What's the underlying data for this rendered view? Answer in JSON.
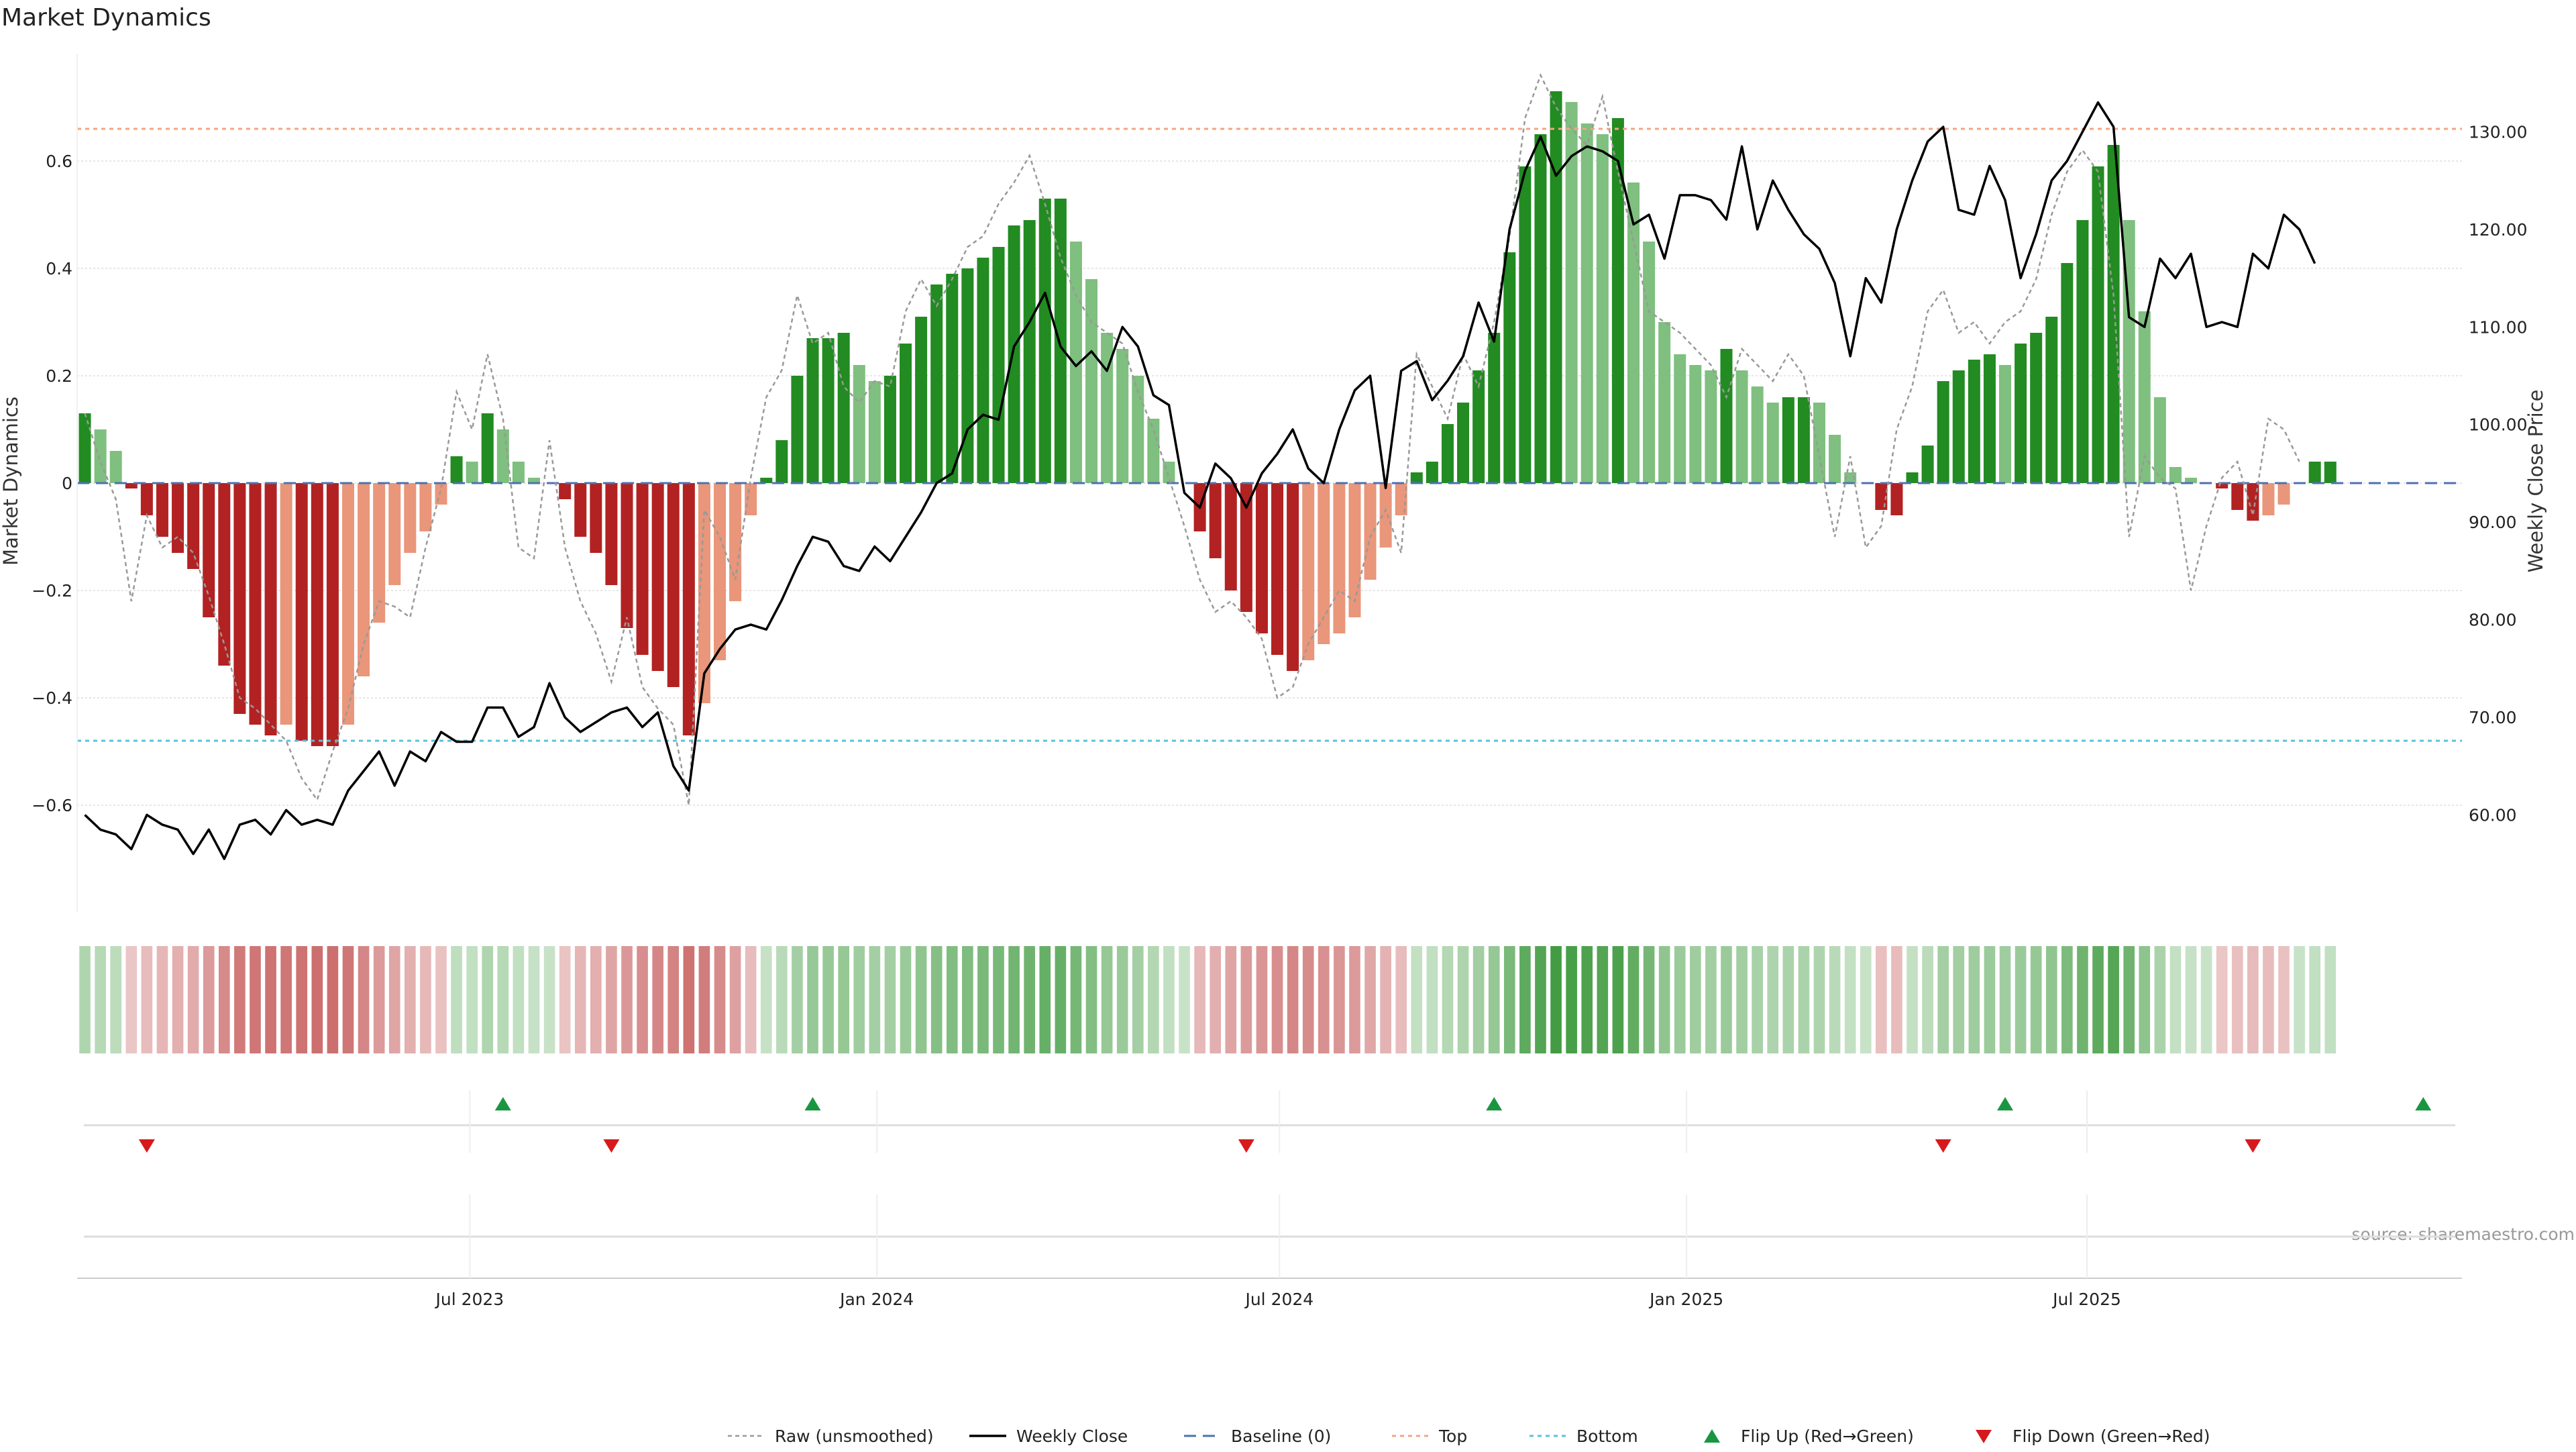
{
  "chart_data": {
    "type": "bar",
    "title": "Market Dynamics",
    "ylabel_left": "Market Dynamics",
    "ylabel_right": "Weekly Close Price",
    "source": "source: sharemaestro.com",
    "left_axis": {
      "ylim": [
        -0.8,
        0.8
      ],
      "ticks": [
        -0.6,
        -0.4,
        -0.2,
        0,
        0.2,
        0.4,
        0.6
      ],
      "tick_labels": [
        "−0.6",
        "−0.4",
        "−0.2",
        "0",
        "0.2",
        "0.4",
        "0.6"
      ]
    },
    "right_axis": {
      "ylim": [
        50,
        138
      ],
      "ticks": [
        60,
        70,
        80,
        90,
        100,
        110,
        120,
        130
      ],
      "tick_labels": [
        "60.00",
        "70.00",
        "80.00",
        "90.00",
        "100.00",
        "110.00",
        "120.00",
        "130.00"
      ]
    },
    "x_axis": {
      "type": "date",
      "range": [
        "2023-01-08",
        "2025-12-14"
      ],
      "ticks": [
        "2023-07-01",
        "2024-01-01",
        "2024-07-01",
        "2025-01-01",
        "2025-07-01"
      ],
      "tick_labels": [
        "Jul 2023",
        "Jan 2024",
        "Jul 2024",
        "Jan 2025",
        "Jul 2025"
      ]
    },
    "start_date": "2023-01-08",
    "week_step_days": 7,
    "grid": true,
    "top_line": 0.66,
    "bottom_line": -0.48,
    "colors": {
      "green_strong": "#228b22",
      "green_light": "#7fbf7f",
      "red_strong": "#b22222",
      "red_light": "#e9967a",
      "raw_line": "#999999",
      "close_line": "#000000",
      "baseline": "#4c72b0",
      "top": "#f4a582",
      "bottom": "#5bc0de",
      "flip_up": "#1a9641",
      "flip_down": "#d7191c"
    },
    "series": [
      {
        "name": "Market Dynamics",
        "values": [
          0.13,
          0.1,
          0.06,
          -0.01,
          -0.06,
          -0.1,
          -0.13,
          -0.16,
          -0.25,
          -0.34,
          -0.43,
          -0.45,
          -0.47,
          -0.45,
          -0.48,
          -0.49,
          -0.49,
          -0.45,
          -0.36,
          -0.26,
          -0.19,
          -0.13,
          -0.09,
          -0.04,
          0.05,
          0.04,
          0.13,
          0.1,
          0.04,
          0.01,
          0,
          -0.03,
          -0.1,
          -0.13,
          -0.19,
          -0.27,
          -0.32,
          -0.35,
          -0.38,
          -0.47,
          -0.41,
          -0.33,
          -0.22,
          -0.06,
          0.01,
          0.08,
          0.2,
          0.27,
          0.27,
          0.28,
          0.22,
          0.19,
          0.2,
          0.26,
          0.31,
          0.37,
          0.39,
          0.4,
          0.42,
          0.44,
          0.48,
          0.49,
          0.53,
          0.53,
          0.45,
          0.38,
          0.28,
          0.25,
          0.2,
          0.12,
          0.04,
          0,
          -0.09,
          -0.14,
          -0.2,
          -0.24,
          -0.28,
          -0.32,
          -0.35,
          -0.33,
          -0.3,
          -0.28,
          -0.25,
          -0.18,
          -0.12,
          -0.06,
          0.02,
          0.04,
          0.11,
          0.15,
          0.21,
          0.28,
          0.43,
          0.59,
          0.65,
          0.73,
          0.71,
          0.67,
          0.65,
          0.68,
          0.56,
          0.45,
          0.3,
          0.24,
          0.22,
          0.21,
          0.25,
          0.21,
          0.18,
          0.15,
          0.16,
          0.16,
          0.15,
          0.09,
          0.02,
          0,
          -0.05,
          -0.06,
          0.02,
          0.07,
          0.19,
          0.21,
          0.23,
          0.24,
          0.22,
          0.26,
          0.28,
          0.31,
          0.41,
          0.49,
          0.59,
          0.63,
          0.49,
          0.32,
          0.16,
          0.03,
          0.01,
          0,
          -0.01,
          -0.05,
          -0.07,
          -0.06,
          -0.04,
          0,
          0.04,
          0.04
        ]
      },
      {
        "name": "Raw (unsmoothed)",
        "values": [
          0.13,
          0.04,
          -0.03,
          -0.22,
          -0.06,
          -0.12,
          -0.1,
          -0.13,
          -0.21,
          -0.3,
          -0.4,
          -0.42,
          -0.45,
          -0.48,
          -0.55,
          -0.59,
          -0.5,
          -0.42,
          -0.3,
          -0.22,
          -0.23,
          -0.25,
          -0.12,
          -0.01,
          0.17,
          0.1,
          0.24,
          0.12,
          -0.12,
          -0.14,
          0.08,
          -0.12,
          -0.22,
          -0.28,
          -0.37,
          -0.25,
          -0.38,
          -0.42,
          -0.45,
          -0.6,
          -0.05,
          -0.1,
          -0.18,
          0.01,
          0.16,
          0.21,
          0.35,
          0.26,
          0.28,
          0.18,
          0.15,
          0.19,
          0.18,
          0.32,
          0.38,
          0.33,
          0.38,
          0.44,
          0.46,
          0.52,
          0.56,
          0.61,
          0.52,
          0.42,
          0.35,
          0.3,
          0.28,
          0.26,
          0.17,
          0.1,
          0.01,
          -0.08,
          -0.18,
          -0.24,
          -0.22,
          -0.25,
          -0.29,
          -0.4,
          -0.38,
          -0.3,
          -0.25,
          -0.2,
          -0.22,
          -0.1,
          -0.05,
          -0.13,
          0.24,
          0.18,
          0.12,
          0.24,
          0.18,
          0.3,
          0.46,
          0.68,
          0.76,
          0.7,
          0.66,
          0.63,
          0.72,
          0.58,
          0.45,
          0.32,
          0.3,
          0.28,
          0.25,
          0.22,
          0.16,
          0.25,
          0.22,
          0.19,
          0.24,
          0.2,
          0.05,
          -0.1,
          0.05,
          -0.12,
          -0.08,
          0.1,
          0.18,
          0.32,
          0.36,
          0.28,
          0.3,
          0.26,
          0.3,
          0.32,
          0.38,
          0.5,
          0.58,
          0.62,
          0.58,
          0.35,
          -0.1,
          0.05,
          0.01,
          -0.01,
          -0.2,
          -0.08,
          0.01,
          0.04,
          -0.06,
          0.12,
          0.1,
          0.04
        ]
      },
      {
        "name": "Weekly Close",
        "values": [
          60.0,
          58.5,
          58.0,
          56.5,
          60.0,
          59.0,
          58.5,
          56.0,
          58.5,
          55.5,
          59.0,
          59.5,
          58.0,
          60.5,
          59.0,
          59.5,
          59.0,
          62.5,
          64.5,
          66.5,
          63.0,
          66.5,
          65.5,
          68.5,
          67.5,
          67.5,
          71.0,
          71.0,
          68.0,
          69.0,
          73.5,
          70.0,
          68.5,
          69.5,
          70.5,
          71.0,
          69.0,
          70.5,
          65.0,
          62.5,
          74.5,
          77.0,
          79.0,
          79.5,
          79.0,
          82.0,
          85.5,
          88.5,
          88.0,
          85.5,
          85.0,
          87.5,
          86.0,
          88.5,
          91.0,
          94.0,
          95.0,
          99.5,
          101.0,
          100.5,
          108.0,
          110.5,
          113.5,
          108.0,
          106.0,
          107.5,
          105.5,
          110.0,
          108.0,
          103.0,
          102.0,
          93.0,
          91.5,
          96.0,
          94.5,
          91.5,
          95.0,
          97.0,
          99.5,
          95.5,
          94.0,
          99.5,
          103.5,
          105.0,
          93.5,
          105.5,
          106.5,
          102.5,
          104.5,
          107.0,
          112.5,
          108.5,
          120.0,
          126.0,
          129.5,
          125.5,
          127.5,
          128.5,
          128.0,
          127.0,
          120.5,
          121.5,
          117.0,
          123.5,
          123.5,
          123.0,
          121.0,
          128.5,
          120.0,
          125.0,
          122.0,
          119.5,
          118.0,
          114.5,
          107.0,
          115.0,
          112.5,
          120.0,
          125.0,
          129.0,
          130.5,
          122.0,
          121.5,
          126.5,
          123.0,
          115.0,
          119.5,
          125.0,
          127.0,
          130.0,
          133.0,
          130.5,
          111.0,
          110.0,
          117.0,
          115.0,
          117.5,
          110.0,
          110.5,
          110.0,
          117.5,
          116.0,
          121.5,
          120.0,
          116.5
        ]
      },
      {
        "name": "Baseline (0)"
      },
      {
        "name": "Top"
      },
      {
        "name": "Bottom"
      },
      {
        "name": "Flip Up (Red→Green)",
        "dates": [
          "2023-07-16",
          "2023-12-03",
          "2024-10-06",
          "2025-05-25",
          "2025-11-30"
        ]
      },
      {
        "name": "Flip Down (Green→Red)",
        "dates": [
          "2023-02-05",
          "2023-09-03",
          "2024-06-16",
          "2025-04-27",
          "2025-09-14"
        ]
      }
    ],
    "legend": {
      "placement": "bottom-center",
      "items": [
        "Raw (unsmoothed)",
        "Weekly Close",
        "Baseline (0)",
        "Top",
        "Bottom",
        "Flip Up (Red→Green)",
        "Flip Down (Green→Red)"
      ]
    }
  }
}
